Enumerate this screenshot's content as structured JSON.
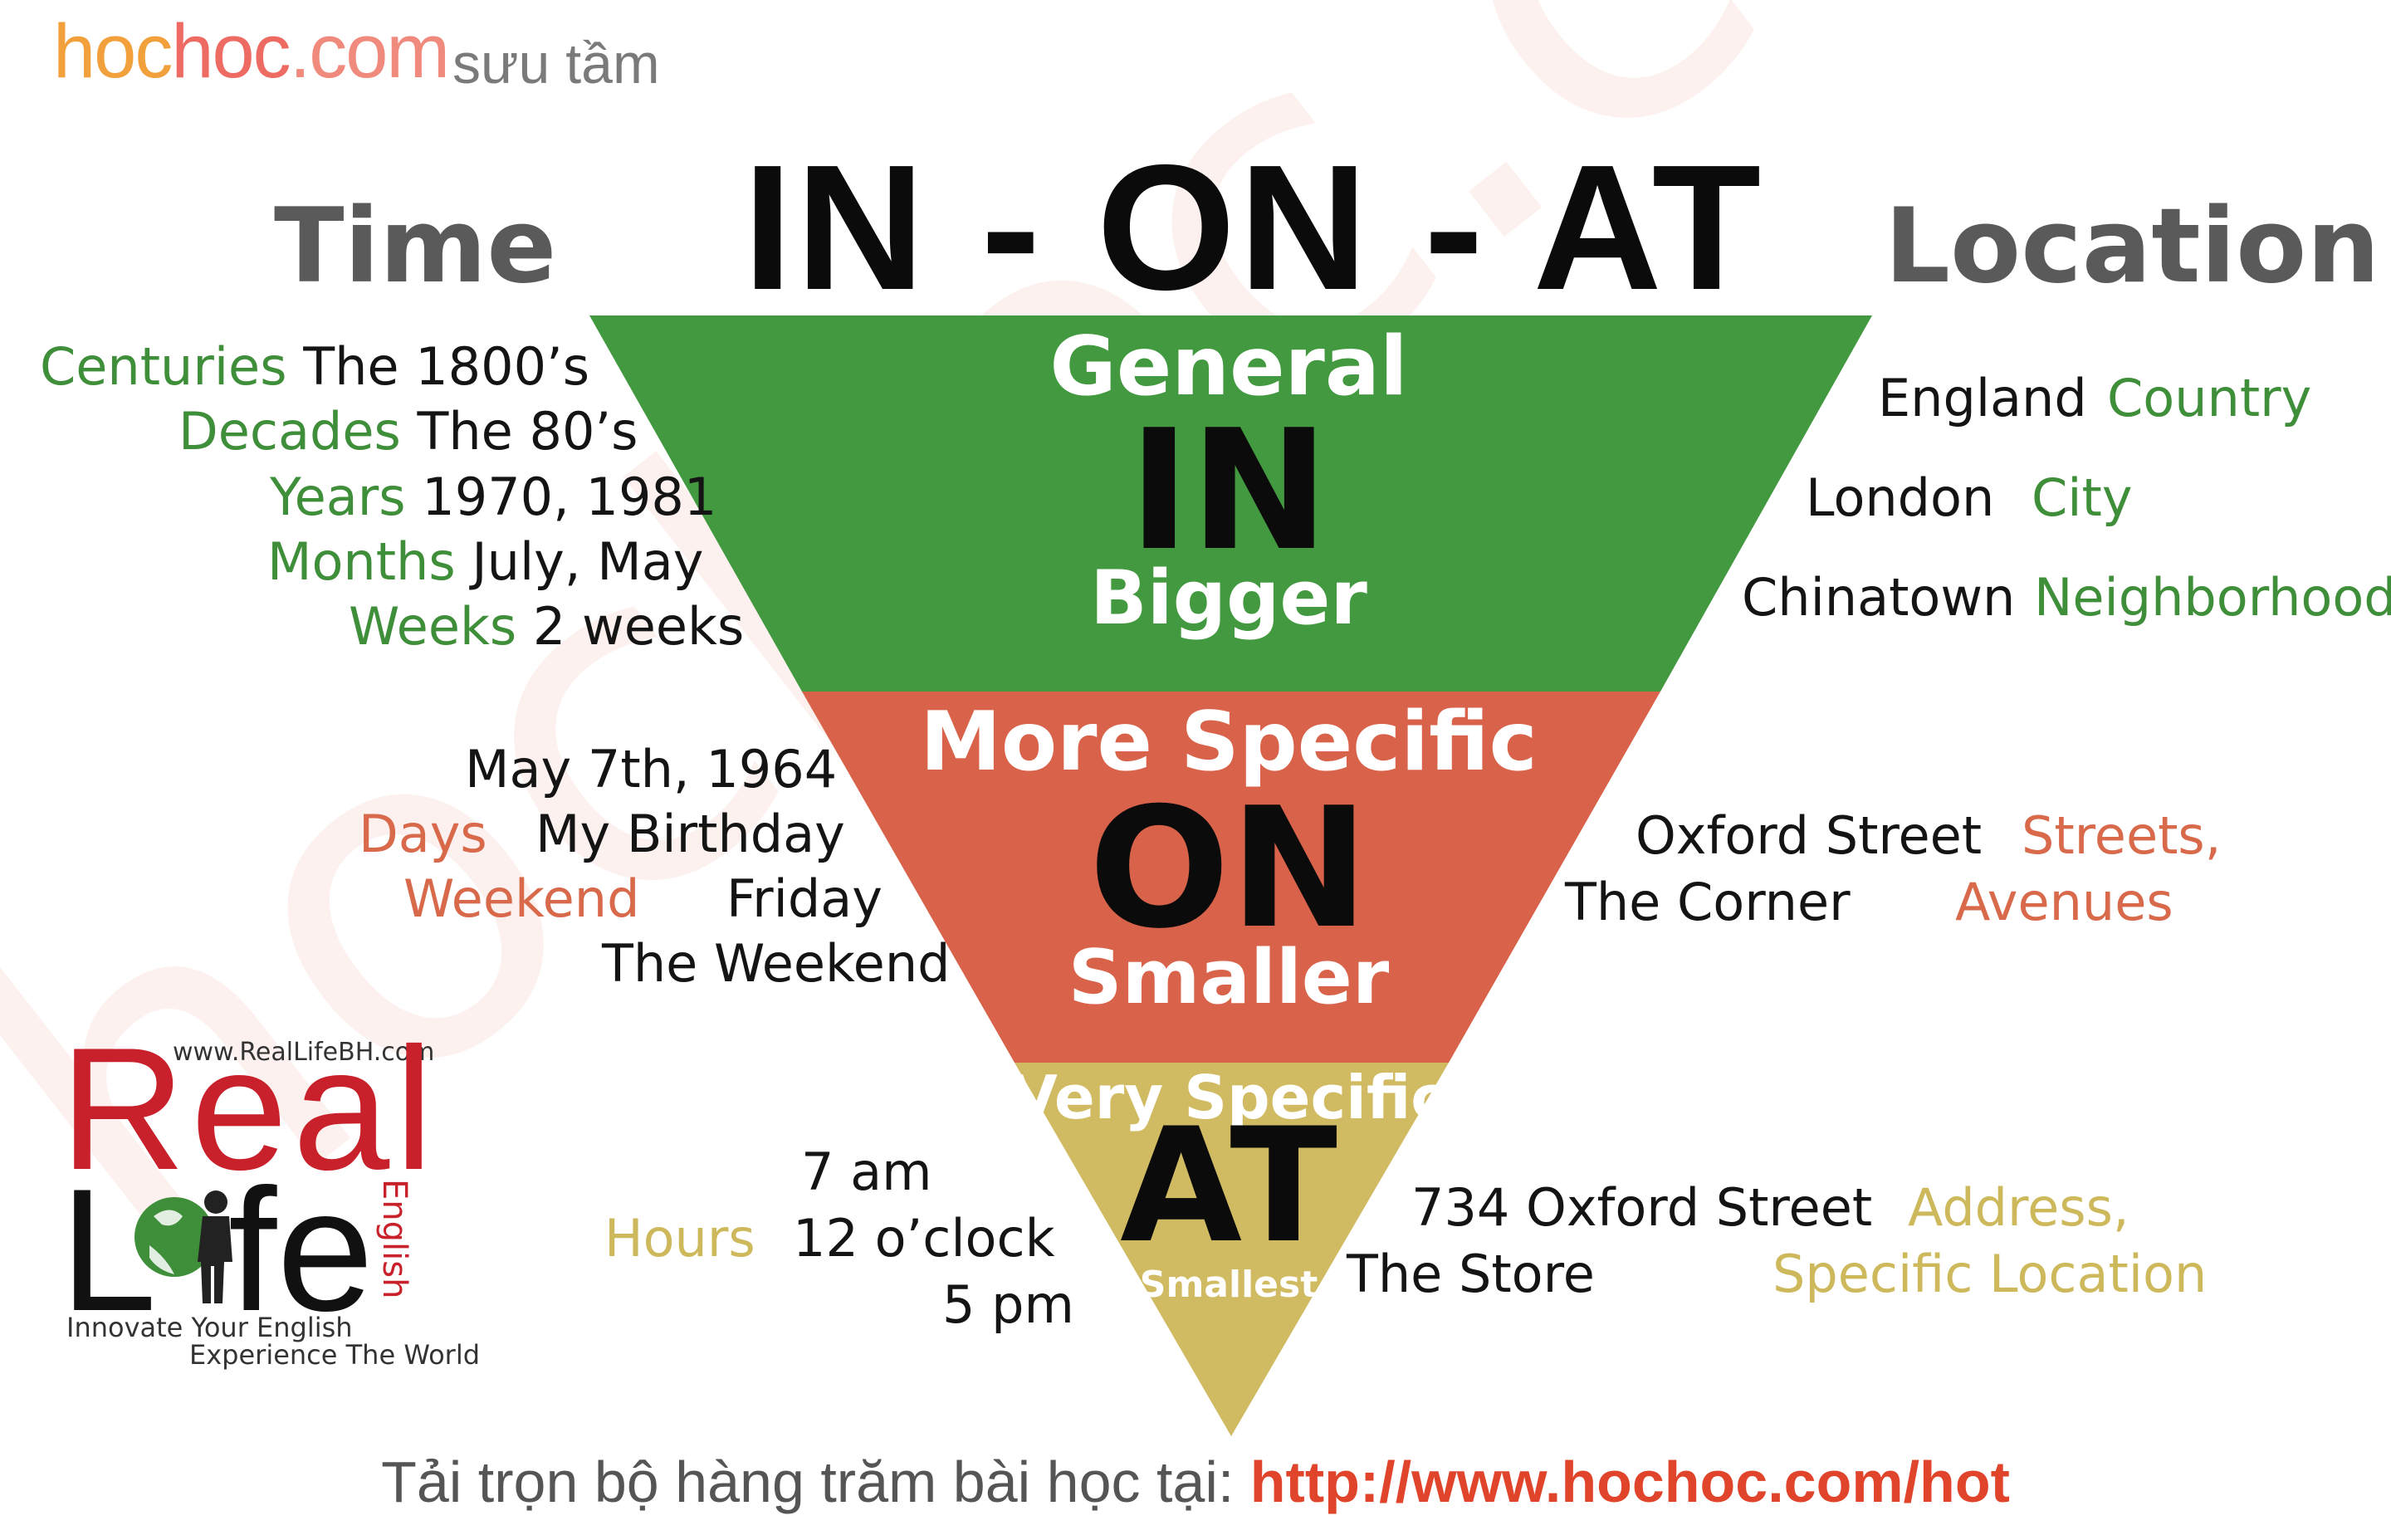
{
  "header": {
    "brand": {
      "part1": "hoc",
      "part2": "hoc",
      "part3": ".com"
    },
    "brand_sub": "sưu tầm",
    "watermark": "hochoc.com",
    "title": "IN - ON - AT",
    "left_heading": "Time",
    "right_heading": "Location"
  },
  "pyramid": {
    "colors": {
      "in": "#42993f",
      "on": "#d9634a",
      "at": "#d1bb62"
    },
    "levels": [
      {
        "label_top": "General",
        "preposition": "IN",
        "label_bottom": "Bigger"
      },
      {
        "label_top": "More Specific",
        "preposition": "ON",
        "label_bottom": "Smaller"
      },
      {
        "label_top": "Very Specific",
        "preposition": "AT",
        "label_bottom": "Smallest"
      }
    ]
  },
  "time": {
    "in": [
      {
        "category": "Centuries",
        "example": "The 1800’s"
      },
      {
        "category": "Decades",
        "example": "The 80’s"
      },
      {
        "category": "Years",
        "example": "1970, 1981"
      },
      {
        "category": "Months",
        "example": "July, May"
      },
      {
        "category": "Weeks",
        "example": "2 weeks"
      }
    ],
    "on": {
      "categories": [
        "Days",
        "Weekend"
      ],
      "examples": [
        "May 7th, 1964",
        "My Birthday",
        "Friday",
        "The Weekend"
      ]
    },
    "at": {
      "category": "Hours",
      "examples": [
        "7 am",
        "12 o’clock",
        "5 pm"
      ]
    }
  },
  "location": {
    "in": [
      {
        "example": "England",
        "category": "Country"
      },
      {
        "example": "London",
        "category": "City"
      },
      {
        "example": "Chinatown",
        "category": "Neighborhood"
      }
    ],
    "on": {
      "examples": [
        "Oxford Street",
        "The Corner"
      ],
      "categories": [
        "Streets,",
        "Avenues"
      ]
    },
    "at": {
      "examples": [
        "734 Oxford Street",
        "The Store"
      ],
      "categories": [
        "Address,",
        "Specific Location"
      ]
    }
  },
  "reallife_logo": {
    "site": "www.RealLifeBH.com",
    "word1": "Real",
    "word2_l": "L",
    "word2_rest": "fe",
    "side_word": "English",
    "tagline1": "Innovate Your English",
    "tagline2": "Experience The World"
  },
  "footer": {
    "text": "Tải trọn bộ hàng trăm bài học tại: ",
    "url": "http://www.hochoc.com/hot"
  }
}
